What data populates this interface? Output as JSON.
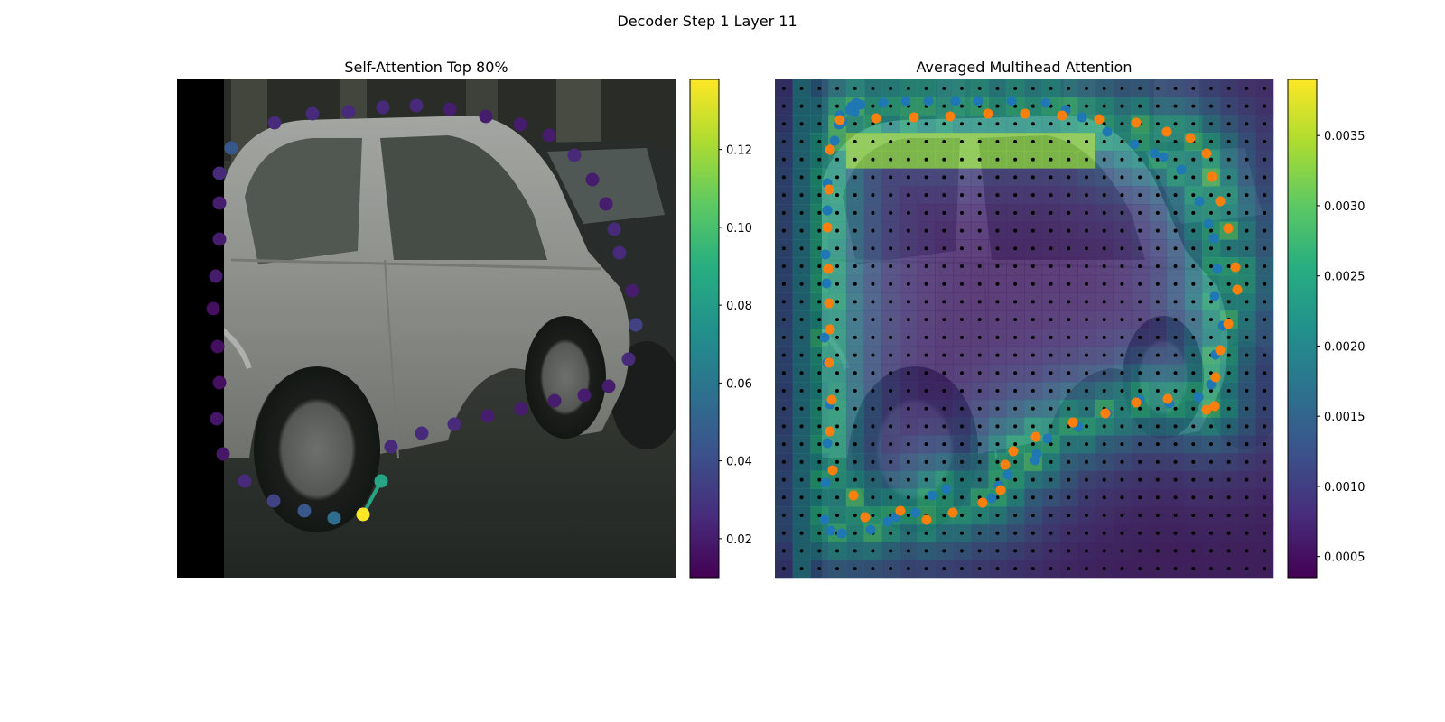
{
  "figure": {
    "suptitle": "Decoder Step 1 Layer 11"
  },
  "chart_data": [
    {
      "type": "scatter",
      "title": "Self-Attention Top 80%",
      "axes_visible": false,
      "colormap": "viridis",
      "colorbar": {
        "range": [
          0.01,
          0.138
        ],
        "ticks": [
          0.02,
          0.04,
          0.06,
          0.08,
          0.1,
          0.12
        ],
        "tick_labels": [
          "0.02",
          "0.04",
          "0.06",
          "0.08",
          "0.10",
          "0.12"
        ]
      },
      "background": "photo of a silver hatchback car parked on a street",
      "points": [
        {
          "x": 60,
          "y": 76,
          "v": 0.045
        },
        {
          "x": 108,
          "y": 48,
          "v": 0.025
        },
        {
          "x": 150,
          "y": 38,
          "v": 0.025
        },
        {
          "x": 190,
          "y": 36,
          "v": 0.025
        },
        {
          "x": 228,
          "y": 31,
          "v": 0.025
        },
        {
          "x": 265,
          "y": 29,
          "v": 0.025
        },
        {
          "x": 302,
          "y": 33,
          "v": 0.02
        },
        {
          "x": 342,
          "y": 41,
          "v": 0.02
        },
        {
          "x": 380,
          "y": 50,
          "v": 0.02
        },
        {
          "x": 412,
          "y": 62,
          "v": 0.02
        },
        {
          "x": 440,
          "y": 84,
          "v": 0.025
        },
        {
          "x": 460,
          "y": 111,
          "v": 0.02
        },
        {
          "x": 475,
          "y": 138,
          "v": 0.02
        },
        {
          "x": 484,
          "y": 166,
          "v": 0.025
        },
        {
          "x": 490,
          "y": 192,
          "v": 0.025
        },
        {
          "x": 504,
          "y": 234,
          "v": 0.02
        },
        {
          "x": 508,
          "y": 272,
          "v": 0.035
        },
        {
          "x": 500,
          "y": 310,
          "v": 0.025
        },
        {
          "x": 478,
          "y": 340,
          "v": 0.02
        },
        {
          "x": 451,
          "y": 350,
          "v": 0.02
        },
        {
          "x": 418,
          "y": 356,
          "v": 0.02
        },
        {
          "x": 381,
          "y": 365,
          "v": 0.02
        },
        {
          "x": 344,
          "y": 373,
          "v": 0.02
        },
        {
          "x": 307,
          "y": 382,
          "v": 0.025
        },
        {
          "x": 271,
          "y": 392,
          "v": 0.025
        },
        {
          "x": 237,
          "y": 407,
          "v": 0.025
        },
        {
          "x": 226,
          "y": 445,
          "v": 0.085
        },
        {
          "x": 206,
          "y": 482,
          "v": 0.138
        },
        {
          "x": 174,
          "y": 486,
          "v": 0.055
        },
        {
          "x": 141,
          "y": 478,
          "v": 0.045
        },
        {
          "x": 107,
          "y": 467,
          "v": 0.035
        },
        {
          "x": 75,
          "y": 445,
          "v": 0.025
        },
        {
          "x": 51,
          "y": 415,
          "v": 0.018
        },
        {
          "x": 44,
          "y": 376,
          "v": 0.018
        },
        {
          "x": 47,
          "y": 336,
          "v": 0.015
        },
        {
          "x": 45,
          "y": 296,
          "v": 0.015
        },
        {
          "x": 40,
          "y": 254,
          "v": 0.015
        },
        {
          "x": 43,
          "y": 218,
          "v": 0.02
        },
        {
          "x": 47,
          "y": 177,
          "v": 0.02
        },
        {
          "x": 47,
          "y": 137,
          "v": 0.02
        },
        {
          "x": 47,
          "y": 104,
          "v": 0.025
        }
      ],
      "line_segment": {
        "from": 26,
        "to": 27
      }
    },
    {
      "type": "heatmap",
      "title": "Averaged Multihead Attention",
      "axes_visible": false,
      "colormap": "viridis",
      "grid_cols": 28,
      "grid_rows": 28,
      "colorbar": {
        "range": [
          0.00035,
          0.0039
        ],
        "ticks": [
          0.0005,
          0.001,
          0.0015,
          0.002,
          0.0025,
          0.003,
          0.0035
        ],
        "tick_labels": [
          "0.0005",
          "0.0010",
          "0.0015",
          "0.0020",
          "0.0025",
          "0.0030",
          "0.0035"
        ]
      },
      "background": "same car photo, overlaid by attention heatmap and sample-point grid",
      "series": [
        {
          "color": "#1f77b4",
          "points": [
            [
              75,
              47
            ],
            [
              88,
              36
            ],
            [
              95,
              28
            ],
            [
              120,
              26
            ],
            [
              145,
              24
            ],
            [
              170,
              24
            ],
            [
              200,
              24
            ],
            [
              225,
              24
            ],
            [
              262,
              24
            ],
            [
              300,
              26
            ],
            [
              322,
              34
            ],
            [
              340,
              42
            ],
            [
              368,
              58
            ],
            [
              398,
              72
            ],
            [
              420,
              82
            ],
            [
              430,
              86
            ],
            [
              450,
              100
            ],
            [
              470,
              135
            ],
            [
              480,
              160
            ],
            [
              486,
              176
            ],
            [
              490,
              210
            ],
            [
              487,
              240
            ],
            [
              496,
              273
            ],
            [
              488,
              305
            ],
            [
              483,
              338
            ],
            [
              469,
              352
            ],
            [
              437,
              359
            ],
            [
              404,
              355
            ],
            [
              368,
              370
            ],
            [
              336,
              385
            ],
            [
              302,
              398
            ],
            [
              290,
              415
            ],
            [
              288,
              422
            ],
            [
              258,
              438
            ],
            [
              248,
              450
            ],
            [
              240,
              464
            ],
            [
              190,
              454
            ],
            [
              174,
              461
            ],
            [
              156,
              480
            ],
            [
              134,
              485
            ],
            [
              125,
              490
            ],
            [
              106,
              499
            ],
            [
              74,
              503
            ],
            [
              62,
              500
            ],
            [
              55,
              488
            ],
            [
              56,
              447
            ],
            [
              58,
              403
            ],
            [
              61,
              360
            ],
            [
              58,
              314
            ],
            [
              55,
              286
            ],
            [
              57,
              226
            ],
            [
              56,
              194
            ],
            [
              58,
              145
            ],
            [
              58,
              115
            ],
            [
              66,
              68
            ],
            [
              71,
              50
            ],
            [
              72,
              40
            ],
            [
              83,
              34
            ],
            [
              85,
              30
            ],
            [
              90,
              26
            ]
          ]
        },
        {
          "color": "#ff7f0e",
          "points": [
            [
              72,
              45
            ],
            [
              112,
              43
            ],
            [
              154,
              42
            ],
            [
              194,
              41
            ],
            [
              236,
              38
            ],
            [
              277,
              38
            ],
            [
              318,
              40
            ],
            [
              359,
              44
            ],
            [
              400,
              48
            ],
            [
              434,
              58
            ],
            [
              460,
              65
            ],
            [
              478,
              82
            ],
            [
              484,
              108
            ],
            [
              493,
              135
            ],
            [
              502,
              165
            ],
            [
              510,
              208
            ],
            [
              512,
              233
            ],
            [
              502,
              271
            ],
            [
              493,
              300
            ],
            [
              488,
              330
            ],
            [
              487,
              362
            ],
            [
              478,
              366
            ],
            [
              435,
              354
            ],
            [
              400,
              358
            ],
            [
              366,
              370
            ],
            [
              330,
              380
            ],
            [
              289,
              396
            ],
            [
              264,
              412
            ],
            [
              255,
              427
            ],
            [
              250,
              455
            ],
            [
              230,
              469
            ],
            [
              197,
              480
            ],
            [
              168,
              488
            ],
            [
              139,
              478
            ],
            [
              100,
              485
            ],
            [
              87,
              461
            ],
            [
              64,
              433
            ],
            [
              61,
              390
            ],
            [
              63,
              355
            ],
            [
              60,
              314
            ],
            [
              61,
              277
            ],
            [
              60,
              248
            ],
            [
              59,
              210
            ],
            [
              58,
              164
            ],
            [
              60,
              122
            ],
            [
              61,
              78
            ]
          ]
        }
      ]
    }
  ]
}
